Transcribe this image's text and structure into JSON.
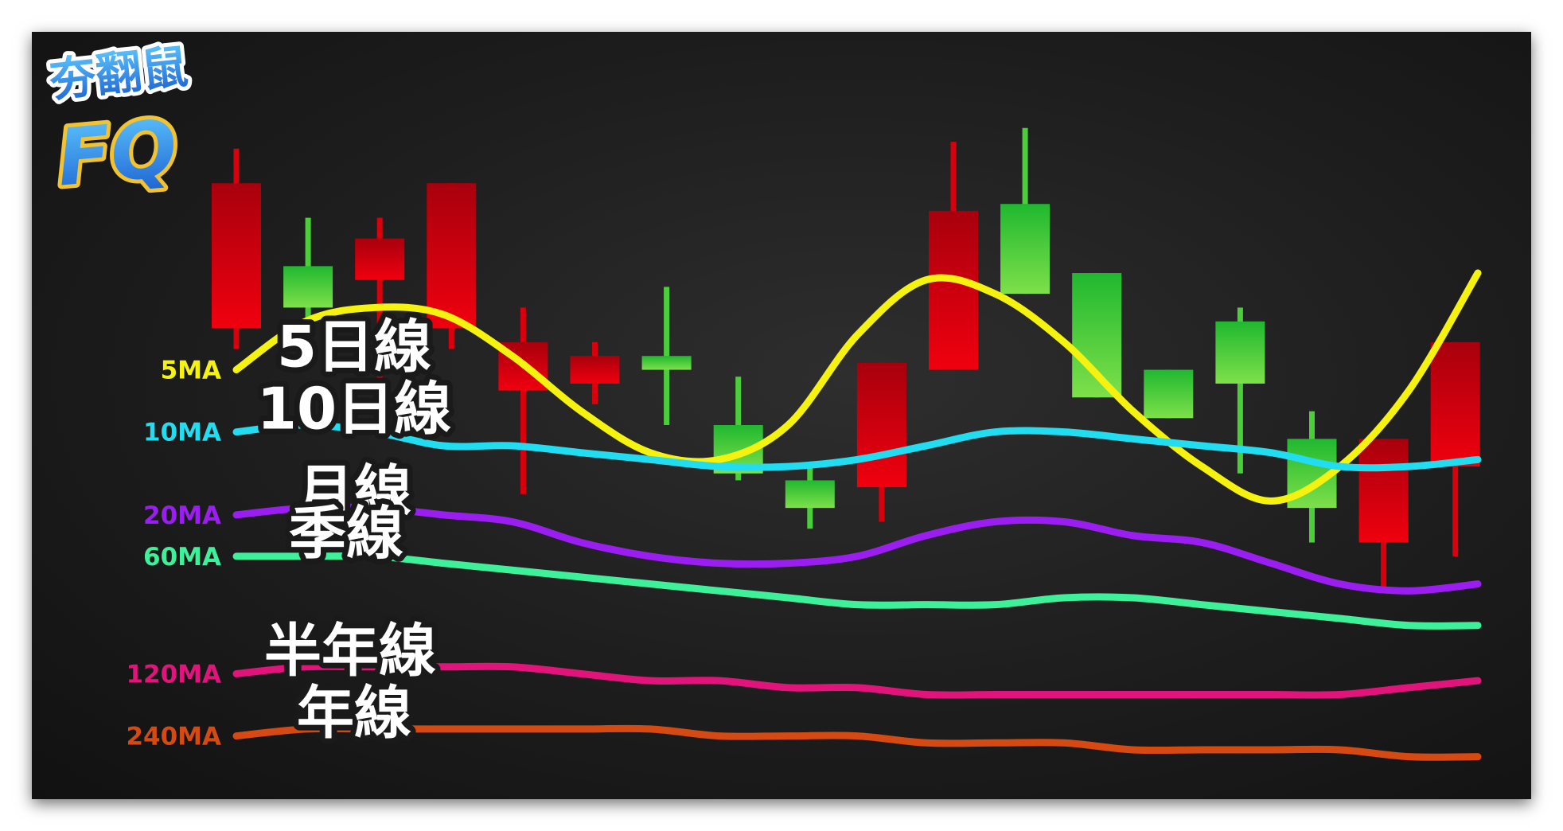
{
  "logo": {
    "line1": "夯翻鼠",
    "line2": "FQ"
  },
  "chart_data": {
    "type": "candlestick",
    "title": "",
    "ylim": [
      0,
      100
    ],
    "candles": [
      {
        "open": 85,
        "close": 64,
        "high": 90,
        "low": 61,
        "color": "red"
      },
      {
        "open": 67,
        "close": 73,
        "high": 80,
        "low": 63,
        "color": "green"
      },
      {
        "open": 77,
        "close": 71,
        "high": 80,
        "low": 53,
        "color": "red"
      },
      {
        "open": 85,
        "close": 64,
        "high": 85,
        "low": 61,
        "color": "red"
      },
      {
        "open": 62,
        "close": 55,
        "high": 67,
        "low": 40,
        "color": "red"
      },
      {
        "open": 60,
        "close": 56,
        "high": 62,
        "low": 53,
        "color": "red"
      },
      {
        "open": 58,
        "close": 60,
        "high": 70,
        "low": 50,
        "color": "green"
      },
      {
        "open": 43,
        "close": 50,
        "high": 57,
        "low": 42,
        "color": "green"
      },
      {
        "open": 38,
        "close": 42,
        "high": 44,
        "low": 35,
        "color": "green"
      },
      {
        "open": 59,
        "close": 41,
        "high": 59,
        "low": 36,
        "color": "red"
      },
      {
        "open": 81,
        "close": 58,
        "high": 91,
        "low": 58,
        "color": "red"
      },
      {
        "open": 69,
        "close": 82,
        "high": 93,
        "low": 69,
        "color": "green"
      },
      {
        "open": 54,
        "close": 72,
        "high": 72,
        "low": 54,
        "color": "green"
      },
      {
        "open": 51,
        "close": 58,
        "high": 58,
        "low": 51,
        "color": "green"
      },
      {
        "open": 56,
        "close": 65,
        "high": 67,
        "low": 43,
        "color": "green"
      },
      {
        "open": 38,
        "close": 48,
        "high": 52,
        "low": 33,
        "color": "green"
      },
      {
        "open": 48,
        "close": 33,
        "high": 48,
        "low": 26,
        "color": "red"
      },
      {
        "open": 62,
        "close": 44,
        "high": 62,
        "low": 31,
        "color": "red"
      }
    ],
    "series": [
      {
        "name": "5MA",
        "label": "5日線",
        "color": "#f5f20f",
        "values": [
          58,
          65,
          67,
          66,
          60,
          52,
          46,
          45,
          50,
          63,
          71,
          69,
          62,
          52,
          44,
          39,
          44,
          55,
          72
        ]
      },
      {
        "name": "10MA",
        "label": "10日線",
        "color": "#22dcf0",
        "values": [
          49,
          50,
          49,
          47,
          47,
          46,
          45,
          44,
          44,
          45,
          47,
          49,
          49,
          48,
          47,
          46,
          44,
          44,
          45
        ]
      },
      {
        "name": "20MA",
        "label": "月線",
        "color": "#9a1ef0",
        "values": [
          37,
          38,
          38,
          37,
          36,
          33,
          31,
          30,
          30,
          31,
          34,
          36,
          36,
          34,
          33,
          30,
          27,
          26,
          27
        ]
      },
      {
        "name": "60MA",
        "label": "季線",
        "color": "#3ff09a",
        "values": [
          31,
          31,
          31,
          30,
          29,
          28,
          27,
          26,
          25,
          24,
          24,
          24,
          25,
          25,
          24,
          23,
          22,
          21,
          21
        ]
      },
      {
        "name": "120MA",
        "label": "半年線",
        "color": "#e0147a",
        "values": [
          14,
          15,
          15,
          15,
          15,
          14,
          13,
          13,
          12,
          12,
          11,
          11,
          11,
          11,
          11,
          11,
          11,
          12,
          13
        ]
      },
      {
        "name": "240MA",
        "label": "年線",
        "color": "#d44a12",
        "values": [
          5,
          6,
          6,
          6,
          6,
          6,
          6,
          5,
          5,
          5,
          4,
          4,
          4,
          3,
          3,
          3,
          3,
          2,
          2
        ]
      }
    ]
  }
}
